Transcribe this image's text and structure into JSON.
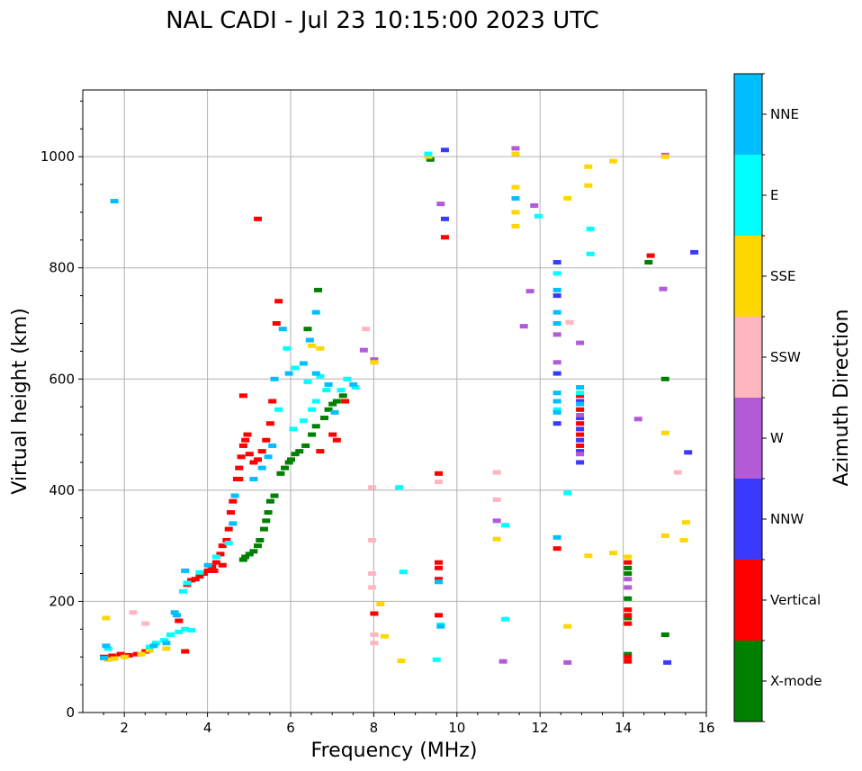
{
  "chart_data": {
    "type": "scatter",
    "title": "NAL CADI - Jul 23 10:15:00 2023 UTC",
    "xlabel": "Frequency (MHz)",
    "ylabel": "Virtual height (km)",
    "xlim": [
      1.0,
      16.0
    ],
    "ylim": [
      0,
      1120
    ],
    "xticks": [
      2,
      4,
      6,
      8,
      10,
      12,
      14,
      16
    ],
    "yticks": [
      0,
      200,
      400,
      600,
      800,
      1000
    ],
    "grid": true,
    "colorbar": {
      "title": "Azimuth Direction",
      "categories": [
        {
          "label": "X-mode",
          "color": "#008000"
        },
        {
          "label": "Vertical",
          "color": "#ff0000"
        },
        {
          "label": "NNW",
          "color": "#3a3aff"
        },
        {
          "label": "W",
          "color": "#b35ad6"
        },
        {
          "label": "SSW",
          "color": "#ffb6c1"
        },
        {
          "label": "SSE",
          "color": "#ffd700"
        },
        {
          "label": "E",
          "color": "#00ffff"
        },
        {
          "label": "NNE",
          "color": "#00bfff"
        }
      ]
    },
    "series": [
      {
        "name": "X-mode",
        "points": [
          [
            4.85,
            275
          ],
          [
            4.9,
            280
          ],
          [
            5.0,
            285
          ],
          [
            5.1,
            290
          ],
          [
            5.2,
            300
          ],
          [
            5.25,
            310
          ],
          [
            5.35,
            330
          ],
          [
            5.4,
            345
          ],
          [
            5.45,
            360
          ],
          [
            5.5,
            380
          ],
          [
            5.6,
            390
          ],
          [
            5.75,
            430
          ],
          [
            5.85,
            440
          ],
          [
            5.95,
            450
          ],
          [
            6.0,
            455
          ],
          [
            6.1,
            465
          ],
          [
            6.2,
            470
          ],
          [
            6.35,
            480
          ],
          [
            6.5,
            500
          ],
          [
            6.6,
            515
          ],
          [
            6.8,
            530
          ],
          [
            6.9,
            545
          ],
          [
            7.0,
            555
          ],
          [
            7.1,
            560
          ],
          [
            7.25,
            570
          ],
          [
            6.65,
            760
          ],
          [
            6.4,
            690
          ],
          [
            14.1,
            260
          ],
          [
            14.1,
            250
          ],
          [
            14.1,
            205
          ],
          [
            14.1,
            170
          ],
          [
            14.1,
            105
          ],
          [
            15.0,
            600
          ],
          [
            14.6,
            810
          ],
          [
            15.0,
            140
          ],
          [
            9.35,
            995
          ]
        ]
      },
      {
        "name": "Vertical",
        "points": [
          [
            1.5,
            100
          ],
          [
            1.7,
            102
          ],
          [
            1.9,
            105
          ],
          [
            2.1,
            103
          ],
          [
            2.3,
            105
          ],
          [
            2.5,
            110
          ],
          [
            3.3,
            165
          ],
          [
            3.45,
            110
          ],
          [
            3.5,
            230
          ],
          [
            3.6,
            238
          ],
          [
            3.7,
            240
          ],
          [
            3.8,
            245
          ],
          [
            3.9,
            250
          ],
          [
            4.0,
            255
          ],
          [
            4.1,
            262
          ],
          [
            4.2,
            270
          ],
          [
            4.3,
            285
          ],
          [
            4.35,
            300
          ],
          [
            4.45,
            310
          ],
          [
            4.5,
            330
          ],
          [
            4.55,
            360
          ],
          [
            4.6,
            380
          ],
          [
            4.7,
            420
          ],
          [
            4.75,
            440
          ],
          [
            4.8,
            460
          ],
          [
            4.85,
            480
          ],
          [
            4.9,
            490
          ],
          [
            4.95,
            500
          ],
          [
            5.0,
            465
          ],
          [
            5.1,
            450
          ],
          [
            5.2,
            455
          ],
          [
            5.3,
            470
          ],
          [
            5.4,
            490
          ],
          [
            5.5,
            520
          ],
          [
            5.55,
            560
          ],
          [
            5.65,
            700
          ],
          [
            5.7,
            740
          ],
          [
            5.2,
            888
          ],
          [
            4.85,
            570
          ],
          [
            4.75,
            420
          ],
          [
            4.35,
            265
          ],
          [
            4.15,
            255
          ],
          [
            6.7,
            470
          ],
          [
            7.0,
            500
          ],
          [
            7.1,
            490
          ],
          [
            7.3,
            560
          ],
          [
            8.0,
            178
          ],
          [
            9.55,
            430
          ],
          [
            9.55,
            270
          ],
          [
            9.55,
            260
          ],
          [
            9.55,
            240
          ],
          [
            9.55,
            175
          ],
          [
            9.7,
            855
          ],
          [
            12.4,
            295
          ],
          [
            12.95,
            570
          ],
          [
            12.95,
            545
          ],
          [
            12.95,
            520
          ],
          [
            12.95,
            500
          ],
          [
            12.95,
            480
          ],
          [
            14.1,
            270
          ],
          [
            14.1,
            185
          ],
          [
            14.1,
            175
          ],
          [
            14.1,
            160
          ],
          [
            14.1,
            92
          ],
          [
            14.1,
            100
          ],
          [
            14.65,
            822
          ]
        ]
      },
      {
        "name": "NNW",
        "points": [
          [
            9.7,
            1012
          ],
          [
            9.7,
            888
          ],
          [
            12.4,
            810
          ],
          [
            12.4,
            750
          ],
          [
            12.4,
            610
          ],
          [
            12.4,
            520
          ],
          [
            12.95,
            560
          ],
          [
            12.95,
            530
          ],
          [
            12.95,
            510
          ],
          [
            12.95,
            490
          ],
          [
            12.95,
            470
          ],
          [
            12.95,
            450
          ],
          [
            15.05,
            90
          ],
          [
            15.55,
            468
          ],
          [
            15.7,
            828
          ]
        ]
      },
      {
        "name": "W",
        "points": [
          [
            11.4,
            1015
          ],
          [
            11.85,
            912
          ],
          [
            11.6,
            695
          ],
          [
            11.75,
            758
          ],
          [
            12.4,
            680
          ],
          [
            12.4,
            630
          ],
          [
            12.95,
            665
          ],
          [
            12.95,
            535
          ],
          [
            12.95,
            465
          ],
          [
            14.1,
            240
          ],
          [
            14.1,
            225
          ],
          [
            14.35,
            528
          ],
          [
            14.95,
            762
          ],
          [
            15.0,
            1003
          ],
          [
            11.1,
            92
          ],
          [
            12.65,
            90
          ],
          [
            10.95,
            345
          ],
          [
            9.6,
            915
          ],
          [
            7.75,
            652
          ],
          [
            8.0,
            635
          ]
        ]
      },
      {
        "name": "SSW",
        "points": [
          [
            2.5,
            160
          ],
          [
            2.2,
            180
          ],
          [
            7.8,
            690
          ],
          [
            7.95,
            405
          ],
          [
            7.95,
            310
          ],
          [
            7.95,
            250
          ],
          [
            7.95,
            225
          ],
          [
            8.0,
            140
          ],
          [
            8.0,
            125
          ],
          [
            9.55,
            415
          ],
          [
            10.95,
            432
          ],
          [
            10.95,
            383
          ],
          [
            12.7,
            702
          ],
          [
            15.3,
            432
          ]
        ]
      },
      {
        "name": "SSE",
        "points": [
          [
            1.55,
            170
          ],
          [
            1.6,
            95
          ],
          [
            1.75,
            97
          ],
          [
            2.0,
            100
          ],
          [
            2.4,
            105
          ],
          [
            2.6,
            112
          ],
          [
            3.0,
            115
          ],
          [
            6.5,
            660
          ],
          [
            6.7,
            655
          ],
          [
            8.0,
            630
          ],
          [
            8.15,
            195
          ],
          [
            8.25,
            137
          ],
          [
            8.65,
            93
          ],
          [
            9.3,
            1000
          ],
          [
            10.95,
            312
          ],
          [
            11.4,
            1005
          ],
          [
            11.4,
            945
          ],
          [
            11.4,
            900
          ],
          [
            11.4,
            875
          ],
          [
            12.65,
            925
          ],
          [
            12.65,
            155
          ],
          [
            13.15,
            982
          ],
          [
            13.15,
            948
          ],
          [
            13.15,
            282
          ],
          [
            13.75,
            287
          ],
          [
            13.75,
            992
          ],
          [
            15.0,
            1000
          ],
          [
            15.0,
            503
          ],
          [
            15.0,
            318
          ],
          [
            15.5,
            342
          ],
          [
            15.45,
            310
          ],
          [
            14.1,
            280
          ]
        ]
      },
      {
        "name": "E",
        "points": [
          [
            1.6,
            115
          ],
          [
            2.6,
            118
          ],
          [
            2.75,
            125
          ],
          [
            2.95,
            130
          ],
          [
            3.1,
            140
          ],
          [
            3.3,
            145
          ],
          [
            3.45,
            150
          ],
          [
            3.6,
            148
          ],
          [
            3.4,
            218
          ],
          [
            3.5,
            233
          ],
          [
            3.8,
            252
          ],
          [
            4.2,
            280
          ],
          [
            4.5,
            305
          ],
          [
            5.7,
            545
          ],
          [
            6.05,
            510
          ],
          [
            6.3,
            525
          ],
          [
            6.5,
            545
          ],
          [
            6.6,
            560
          ],
          [
            6.85,
            580
          ],
          [
            7.2,
            580
          ],
          [
            7.35,
            600
          ],
          [
            6.7,
            605
          ],
          [
            6.1,
            620
          ],
          [
            5.9,
            655
          ],
          [
            7.55,
            585
          ],
          [
            8.7,
            253
          ],
          [
            8.6,
            405
          ],
          [
            9.3,
            1005
          ],
          [
            9.6,
            158
          ],
          [
            11.15,
            337
          ],
          [
            11.15,
            168
          ],
          [
            11.95,
            893
          ],
          [
            12.65,
            395
          ],
          [
            12.4,
            790
          ],
          [
            13.2,
            870
          ],
          [
            13.2,
            825
          ],
          [
            12.4,
            545
          ],
          [
            12.95,
            575
          ],
          [
            9.5,
            95
          ],
          [
            6.4,
            595
          ]
        ]
      },
      {
        "name": "NNE",
        "points": [
          [
            1.5,
            98
          ],
          [
            1.55,
            120
          ],
          [
            2.7,
            120
          ],
          [
            3.0,
            125
          ],
          [
            3.2,
            180
          ],
          [
            3.25,
            175
          ],
          [
            3.45,
            255
          ],
          [
            4.0,
            265
          ],
          [
            4.6,
            340
          ],
          [
            4.65,
            390
          ],
          [
            5.1,
            420
          ],
          [
            5.3,
            440
          ],
          [
            5.45,
            460
          ],
          [
            5.55,
            480
          ],
          [
            5.6,
            600
          ],
          [
            5.8,
            690
          ],
          [
            5.95,
            610
          ],
          [
            6.3,
            628
          ],
          [
            6.45,
            670
          ],
          [
            6.6,
            720
          ],
          [
            6.6,
            610
          ],
          [
            6.9,
            590
          ],
          [
            7.05,
            540
          ],
          [
            7.5,
            590
          ],
          [
            9.55,
            235
          ],
          [
            9.6,
            155
          ],
          [
            11.4,
            925
          ],
          [
            12.4,
            575
          ],
          [
            12.4,
            560
          ],
          [
            12.4,
            540
          ],
          [
            12.4,
            315
          ],
          [
            12.4,
            760
          ],
          [
            12.4,
            720
          ],
          [
            12.4,
            700
          ],
          [
            12.95,
            585
          ],
          [
            12.95,
            555
          ],
          [
            1.75,
            920
          ]
        ]
      }
    ]
  }
}
